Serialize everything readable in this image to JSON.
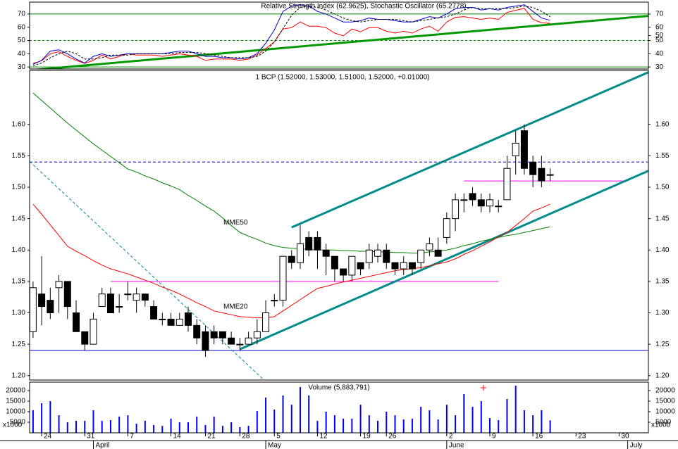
{
  "chart_data": [
    {
      "type": "line",
      "title": "Relative Strength Index (62.9625), Stochastic Oscillator (65.2778)",
      "xlim": [
        -0.4,
        71.4
      ],
      "ylim": [
        28.5,
        79
      ],
      "yticks": [
        30,
        40,
        50,
        60,
        70
      ],
      "y2lim": [
        0,
        100
      ],
      "y2ticks": [
        50
      ],
      "level_color": "#008000",
      "levels": [
        {
          "value": 70
        },
        {
          "value": 50,
          "dash": true
        },
        {
          "value": 30
        }
      ],
      "trendlines": [
        {
          "x": [
            -0.4,
            71.4
          ],
          "y": [
            27.5,
            68.6
          ],
          "color": "#009900",
          "width": 3
        }
      ],
      "series": [
        {
          "color": "#ff0000",
          "values": [
            32.7,
            34.7,
            40,
            41.5,
            38,
            35,
            32.7,
            35,
            39,
            36,
            38,
            40,
            39,
            39,
            39,
            38,
            39,
            40,
            39,
            38,
            35,
            36,
            36,
            36,
            35,
            36,
            39,
            44,
            49,
            58.7,
            59.7,
            64,
            60.8,
            60.8,
            59.7,
            55.6,
            53.5,
            58.7,
            56.6,
            59.7,
            59.7,
            57,
            55.6,
            57,
            55.6,
            58.7,
            60.8,
            57,
            64,
            67.5,
            68,
            67,
            66,
            67,
            66,
            71.2,
            72.8,
            74.3,
            66,
            63.4,
            62.9625
          ]
        },
        {
          "color": "#0000cc",
          "values": [
            32,
            35,
            42,
            43,
            40,
            36,
            33,
            38,
            40,
            38,
            39,
            40,
            40,
            40,
            40,
            40,
            41,
            42,
            42,
            40,
            38,
            38,
            37,
            37,
            36,
            37,
            40,
            48,
            58,
            72,
            76,
            77,
            76,
            72,
            70,
            67,
            64,
            64,
            65,
            67,
            66,
            66,
            65,
            64,
            64,
            66,
            68,
            67,
            70,
            74,
            75,
            75,
            73,
            74,
            73,
            75,
            76,
            77,
            72,
            67,
            65.2778
          ]
        },
        {
          "color": "#000000",
          "dash": true,
          "values": [
            31,
            33,
            37,
            40,
            42,
            40,
            36,
            36,
            37,
            39,
            39,
            39,
            40,
            40,
            40,
            40,
            40,
            41,
            41,
            41,
            40,
            39,
            38,
            37,
            37,
            37,
            38,
            42,
            49,
            59,
            69,
            75,
            76,
            75,
            73,
            70,
            67,
            65,
            64,
            65,
            66,
            66,
            66,
            65,
            64,
            65,
            66,
            67,
            68,
            70,
            73,
            75,
            74,
            74,
            74,
            74,
            75,
            76,
            75,
            72,
            68
          ]
        }
      ]
    },
    {
      "type": "candlestick",
      "title": "1 BCP (1.52000, 1.53000, 1.51000, 1.52000, +0.01000)",
      "xlim": [
        -0.4,
        71.4
      ],
      "ylim": [
        1.193,
        1.686
      ],
      "yticks": [
        {
          "value": 1.2,
          "label": "1.20"
        },
        {
          "value": 1.25,
          "label": "1.25"
        },
        {
          "value": 1.3,
          "label": "1.30"
        },
        {
          "value": 1.35,
          "label": "1.35"
        },
        {
          "value": 1.4,
          "label": "1.40"
        },
        {
          "value": 1.45,
          "label": "1.45"
        },
        {
          "value": 1.5,
          "label": "1.50"
        },
        {
          "value": 1.55,
          "label": "1.55"
        },
        {
          "value": 1.6,
          "label": "1.60"
        }
      ],
      "open": [
        1.27,
        1.33,
        1.32,
        1.34,
        1.35,
        1.3,
        1.27,
        1.25,
        1.31,
        1.33,
        1.31,
        1.33,
        1.32,
        1.33,
        1.31,
        1.29,
        1.29,
        1.28,
        1.3,
        1.28,
        1.27,
        1.27,
        1.27,
        1.26,
        1.25,
        1.25,
        1.26,
        1.27,
        1.32,
        1.32,
        1.39,
        1.38,
        1.42,
        1.42,
        1.4,
        1.39,
        1.37,
        1.36,
        1.38,
        1.38,
        1.39,
        1.4,
        1.38,
        1.37,
        1.38,
        1.38,
        1.4,
        1.4,
        1.42,
        1.45,
        1.48,
        1.49,
        1.48,
        1.47,
        1.47,
        1.48,
        1.55,
        1.59,
        1.54,
        1.53,
        1.52
      ],
      "high": [
        1.35,
        1.39,
        1.34,
        1.36,
        1.35,
        1.32,
        1.27,
        1.3,
        1.34,
        1.34,
        1.33,
        1.35,
        1.34,
        1.33,
        1.32,
        1.3,
        1.3,
        1.3,
        1.31,
        1.29,
        1.28,
        1.28,
        1.27,
        1.27,
        1.26,
        1.27,
        1.29,
        1.32,
        1.33,
        1.39,
        1.4,
        1.44,
        1.43,
        1.43,
        1.41,
        1.39,
        1.37,
        1.39,
        1.38,
        1.41,
        1.41,
        1.41,
        1.38,
        1.39,
        1.38,
        1.4,
        1.42,
        1.42,
        1.46,
        1.49,
        1.49,
        1.5,
        1.49,
        1.49,
        1.48,
        1.55,
        1.59,
        1.6,
        1.55,
        1.55,
        1.53
      ],
      "low": [
        1.26,
        1.28,
        1.29,
        1.3,
        1.29,
        1.27,
        1.24,
        1.25,
        1.31,
        1.3,
        1.3,
        1.32,
        1.3,
        1.31,
        1.29,
        1.28,
        1.28,
        1.28,
        1.27,
        1.25,
        1.23,
        1.25,
        1.25,
        1.25,
        1.24,
        1.25,
        1.25,
        1.27,
        1.31,
        1.31,
        1.37,
        1.37,
        1.39,
        1.37,
        1.36,
        1.35,
        1.35,
        1.35,
        1.36,
        1.37,
        1.38,
        1.37,
        1.36,
        1.36,
        1.36,
        1.37,
        1.39,
        1.39,
        1.41,
        1.43,
        1.46,
        1.47,
        1.46,
        1.46,
        1.46,
        1.48,
        1.52,
        1.52,
        1.5,
        1.5,
        1.51
      ],
      "close": [
        1.34,
        1.31,
        1.3,
        1.35,
        1.31,
        1.27,
        1.25,
        1.29,
        1.33,
        1.3,
        1.31,
        1.33,
        1.33,
        1.32,
        1.29,
        1.29,
        1.28,
        1.29,
        1.28,
        1.26,
        1.24,
        1.26,
        1.26,
        1.25,
        1.25,
        1.26,
        1.27,
        1.3,
        1.32,
        1.39,
        1.38,
        1.41,
        1.4,
        1.4,
        1.39,
        1.37,
        1.36,
        1.39,
        1.37,
        1.4,
        1.4,
        1.38,
        1.37,
        1.38,
        1.37,
        1.4,
        1.41,
        1.39,
        1.45,
        1.48,
        1.48,
        1.48,
        1.47,
        1.48,
        1.47,
        1.53,
        1.57,
        1.53,
        1.52,
        1.51,
        1.52
      ],
      "series": [
        {
          "name": "MME50",
          "color": "#008000",
          "values": [
            1.65,
            1.638,
            1.626,
            1.614,
            1.602,
            1.591,
            1.58,
            1.569,
            1.559,
            1.549,
            1.539,
            1.529,
            1.524,
            1.518,
            1.513,
            1.507,
            1.502,
            1.496,
            1.487,
            1.479,
            1.47,
            1.462,
            1.451,
            1.439,
            1.428,
            1.422,
            1.417,
            1.411,
            1.407,
            1.404,
            1.403,
            1.402,
            1.401,
            1.4,
            1.4,
            1.4,
            1.399,
            1.399,
            1.398,
            1.398,
            1.397,
            1.397,
            1.396,
            1.396,
            1.395,
            1.395,
            1.397,
            1.398,
            1.4,
            1.403,
            1.407,
            1.41,
            1.414,
            1.417,
            1.42,
            1.423,
            1.425,
            1.428,
            1.431,
            1.434,
            1.437
          ]
        },
        {
          "name": "MME20",
          "color": "#ff0000",
          "values": [
            1.473,
            1.457,
            1.44,
            1.423,
            1.406,
            1.398,
            1.391,
            1.383,
            1.376,
            1.37,
            1.366,
            1.362,
            1.357,
            1.352,
            1.347,
            1.341,
            1.336,
            1.33,
            1.323,
            1.316,
            1.31,
            1.303,
            1.3,
            1.297,
            1.294,
            1.293,
            1.292,
            1.292,
            1.294,
            1.303,
            1.312,
            1.321,
            1.33,
            1.339,
            1.342,
            1.346,
            1.349,
            1.352,
            1.355,
            1.358,
            1.361,
            1.364,
            1.367,
            1.369,
            1.37,
            1.372,
            1.375,
            1.378,
            1.381,
            1.386,
            1.393,
            1.399,
            1.406,
            1.413,
            1.421,
            1.428,
            1.439,
            1.45,
            1.462,
            1.467,
            1.473
          ]
        }
      ],
      "hlines": [
        {
          "value": 1.54,
          "color": "#0000cc",
          "dash": true
        },
        {
          "value": 1.24,
          "color": "#0000cc"
        },
        {
          "value": 1.35,
          "x": [
            9,
            54
          ],
          "color": "#ff00ff"
        },
        {
          "value": 1.51,
          "x": [
            50,
            69
          ],
          "color": "#ff00ff"
        }
      ],
      "trendlines": [
        {
          "x": [
            30,
            71.4
          ],
          "y": [
            1.436,
            1.683
          ],
          "color": "#008b8b",
          "width": 3
        },
        {
          "x": [
            24,
            71.4
          ],
          "y": [
            1.242,
            1.526
          ],
          "color": "#008b8b",
          "width": 3
        },
        {
          "x": [
            -0.4,
            26.8
          ],
          "y": [
            1.541,
            1.193
          ],
          "color": "#008b8b",
          "width": 1,
          "dash": true
        }
      ]
    },
    {
      "type": "volume",
      "title": "Volume (5,883,791)",
      "unit_label": "x1000",
      "xlim": [
        -0.4,
        71.4
      ],
      "ylim": [
        0,
        24000
      ],
      "yticks": [
        5000,
        10000,
        15000,
        20000
      ],
      "color": "#0000ff",
      "values": [
        10700,
        14000,
        15000,
        8300,
        5000,
        5700,
        5700,
        10700,
        5700,
        6000,
        7700,
        8300,
        4300,
        5700,
        3700,
        3300,
        6700,
        5000,
        5000,
        7700,
        3700,
        7700,
        3300,
        5000,
        2700,
        3300,
        10300,
        16700,
        11000,
        17700,
        13300,
        21700,
        17700,
        5700,
        10000,
        8300,
        6700,
        6700,
        13300,
        8300,
        5700,
        10000,
        8300,
        6300,
        6700,
        12300,
        10700,
        6300,
        13300,
        8300,
        18300,
        12300,
        15000,
        7000,
        6000,
        16000,
        22300,
        10700,
        8300,
        10700,
        5884
      ],
      "xticks": [
        {
          "value": 1,
          "label": "24"
        },
        {
          "value": 6,
          "label": "31"
        },
        {
          "value": 11,
          "label": "7"
        },
        {
          "value": 16,
          "label": "14"
        },
        {
          "value": 20,
          "label": "21"
        },
        {
          "value": 24,
          "label": "28"
        },
        {
          "value": 28,
          "label": "5"
        },
        {
          "value": 33,
          "label": "12"
        },
        {
          "value": 38,
          "label": "19"
        },
        {
          "value": 41,
          "label": "26"
        },
        {
          "value": 48,
          "label": "2"
        },
        {
          "value": 53,
          "label": "9"
        },
        {
          "value": 58,
          "label": "16"
        },
        {
          "value": 63,
          "label": "23"
        },
        {
          "value": 68,
          "label": "30"
        }
      ],
      "month_ticks": [
        {
          "value": 7,
          "label": "April"
        },
        {
          "value": 27,
          "label": "May"
        },
        {
          "value": 48,
          "label": "June"
        },
        {
          "value": 69,
          "label": "July"
        }
      ]
    }
  ]
}
